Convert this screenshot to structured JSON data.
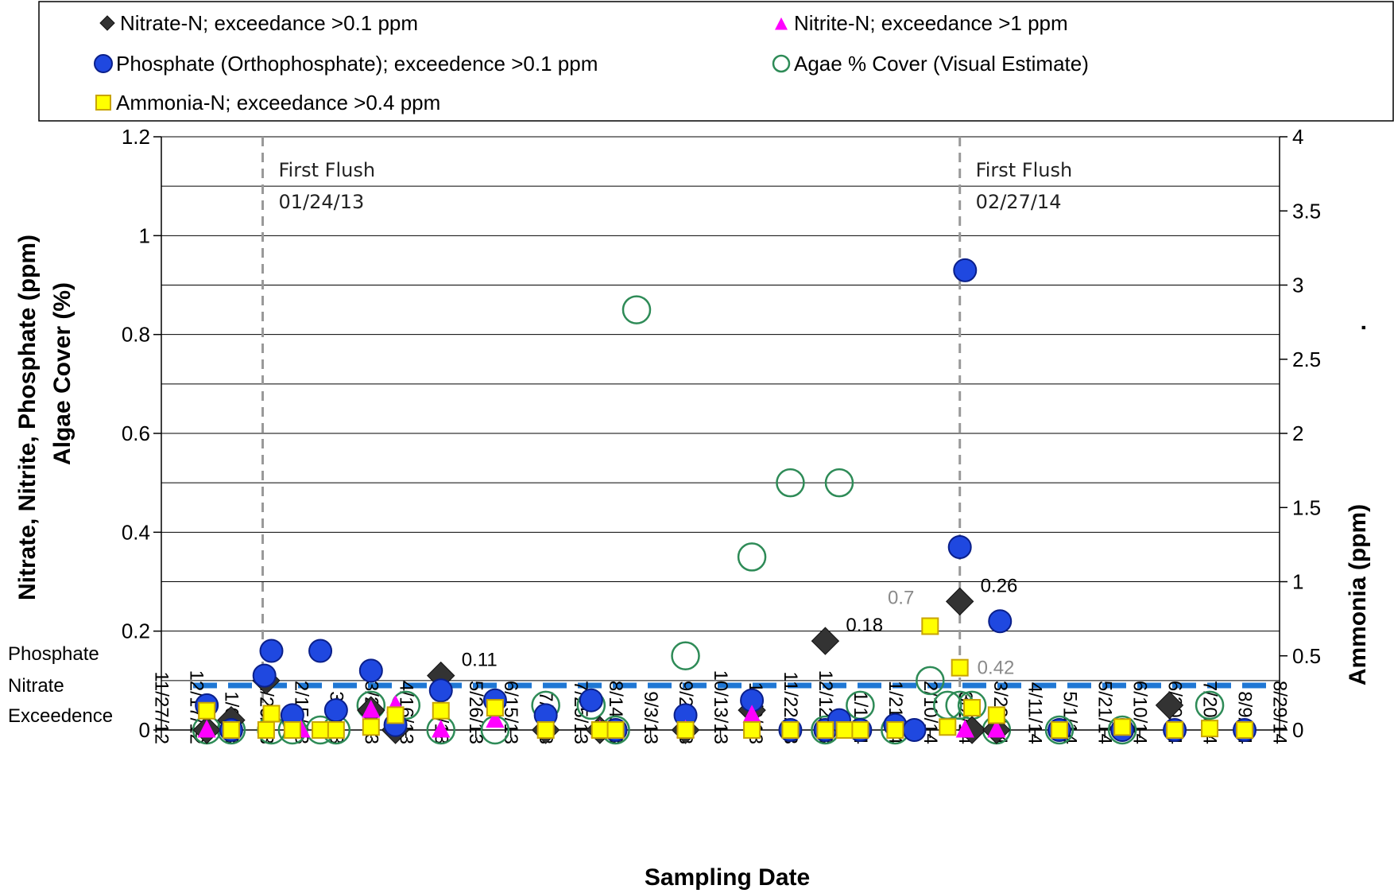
{
  "chart_data": {
    "type": "scatter",
    "xlabel": "Sampling Date",
    "ylabel_left_line1": "Nitrate, Nitrite, Phosphate (ppm)",
    "ylabel_left_line2": "Algae Cover (%)",
    "ylabel_right": "Ammonia (ppm)",
    "ylabel_right_dot": ".",
    "ylim_left": [
      0,
      1.2
    ],
    "yticks_left": [
      "0",
      "0.2",
      "0.4",
      "0.6",
      "0.8",
      "1",
      "1.2"
    ],
    "ylim_right": [
      0,
      4
    ],
    "yticks_right": [
      "0",
      "0.5",
      "1",
      "1.5",
      "2",
      "2.5",
      "3",
      "3.5",
      "4"
    ],
    "xlim": [
      "11/27/12",
      "8/29/14"
    ],
    "xticks": [
      "11/27/12",
      "12/17/12",
      "1/6/13",
      "1/26/13",
      "2/15/13",
      "3/7/13",
      "3/27/13",
      "4/16/13",
      "5/6/13",
      "5/26/13",
      "6/15/13",
      "7/5/13",
      "7/25/13",
      "8/14/13",
      "9/3/13",
      "9/23/13",
      "10/13/13",
      "11/2/13",
      "11/22/13",
      "12/12/13",
      "1/1/14",
      "1/21/14",
      "2/10/14",
      "3/2/14",
      "3/22/14",
      "4/11/14",
      "5/1/14",
      "5/21/14",
      "6/10/14",
      "6/30/14",
      "7/20/14",
      "8/9/14",
      "8/29/14"
    ],
    "grid": "horizontal",
    "legend_position": "top",
    "legend": [
      {
        "series": "nitrate",
        "label": "Nitrate-N; exceedance >0.1 ppm"
      },
      {
        "series": "nitrite",
        "label": "Nitrite-N; exceedance >1 ppm"
      },
      {
        "series": "phosphate",
        "label": "Phosphate (Orthophosphate); exceedence >0.1 ppm"
      },
      {
        "series": "algae",
        "label": "Agae % Cover (Visual Estimate)"
      },
      {
        "series": "ammonia",
        "label": "Ammonia-N; exceedance >0.4 ppm"
      }
    ],
    "threshold": {
      "y": 0.09,
      "color": "#1f77d4",
      "label_lines": [
        "Phosphate",
        "Nitrate",
        "Exceedence"
      ]
    },
    "first_flush": [
      {
        "date": "1/24/13",
        "label_line1": "First Flush",
        "label_line2": "01/24/13"
      },
      {
        "date": "2/27/14",
        "label_line1": "First Flush",
        "label_line2": "02/27/14"
      }
    ],
    "colors": {
      "nitrate": "#333333",
      "nitrite": "#ff00ff",
      "phosphate": "#1f48e0",
      "algae": "#2e8b57",
      "ammonia_fill": "#ffff00",
      "ammonia_stroke": "#c8a400",
      "grid": "#000000",
      "flush_line": "#999999"
    },
    "series": {
      "nitrate": [
        {
          "x": "12/23/12",
          "y": 0.0
        },
        {
          "x": "1/6/13",
          "y": 0.02
        },
        {
          "x": "1/26/13",
          "y": 0.1
        },
        {
          "x": "3/27/13",
          "y": 0.04
        },
        {
          "x": "4/10/13",
          "y": 0.0
        },
        {
          "x": "5/6/13",
          "y": 0.11,
          "label": "0.11"
        },
        {
          "x": "7/5/13",
          "y": 0.0
        },
        {
          "x": "8/5/13",
          "y": 0.0
        },
        {
          "x": "9/23/13",
          "y": 0.0
        },
        {
          "x": "10/31/13",
          "y": 0.04
        },
        {
          "x": "12/12/13",
          "y": 0.18,
          "label": "0.18"
        },
        {
          "x": "2/27/14",
          "y": 0.26,
          "label": "0.26"
        },
        {
          "x": "3/6/14",
          "y": 0.0
        },
        {
          "x": "3/20/14",
          "y": 0.0
        },
        {
          "x": "6/27/14",
          "y": 0.05
        }
      ],
      "nitrite": [
        {
          "x": "12/23/12",
          "y": 0.0
        },
        {
          "x": "2/15/13",
          "y": 0.0
        },
        {
          "x": "3/27/13",
          "y": 0.04
        },
        {
          "x": "4/10/13",
          "y": 0.05
        },
        {
          "x": "5/6/13",
          "y": 0.0
        },
        {
          "x": "6/6/13",
          "y": 0.02
        },
        {
          "x": "8/5/13",
          "y": 0.0
        },
        {
          "x": "9/23/13",
          "y": 0.0
        },
        {
          "x": "10/31/13",
          "y": 0.03
        },
        {
          "x": "3/2/14",
          "y": 0.0
        },
        {
          "x": "3/20/14",
          "y": 0.0
        }
      ],
      "phosphate": [
        {
          "x": "12/23/12",
          "y": 0.05
        },
        {
          "x": "1/6/13",
          "y": 0.0
        },
        {
          "x": "1/25/13",
          "y": 0.11
        },
        {
          "x": "1/29/13",
          "y": 0.16
        },
        {
          "x": "2/10/13",
          "y": 0.03
        },
        {
          "x": "2/26/13",
          "y": 0.16
        },
        {
          "x": "3/7/13",
          "y": 0.04
        },
        {
          "x": "3/27/13",
          "y": 0.12
        },
        {
          "x": "4/10/13",
          "y": 0.01
        },
        {
          "x": "5/6/13",
          "y": 0.08
        },
        {
          "x": "6/6/13",
          "y": 0.06
        },
        {
          "x": "7/5/13",
          "y": 0.03
        },
        {
          "x": "7/31/13",
          "y": 0.06
        },
        {
          "x": "8/14/13",
          "y": 0.0
        },
        {
          "x": "9/23/13",
          "y": 0.03
        },
        {
          "x": "10/31/13",
          "y": 0.06
        },
        {
          "x": "11/22/13",
          "y": 0.0
        },
        {
          "x": "12/12/13",
          "y": 0.0
        },
        {
          "x": "12/20/13",
          "y": 0.02
        },
        {
          "x": "1/1/14",
          "y": 0.0
        },
        {
          "x": "1/21/14",
          "y": 0.01
        },
        {
          "x": "2/1/14",
          "y": 0.0
        },
        {
          "x": "2/27/14",
          "y": 0.37
        },
        {
          "x": "3/2/14",
          "y": 0.93
        },
        {
          "x": "3/22/14",
          "y": 0.22
        },
        {
          "x": "4/25/14",
          "y": 0.0
        },
        {
          "x": "5/31/14",
          "y": 0.0
        },
        {
          "x": "6/30/14",
          "y": 0.0
        },
        {
          "x": "8/9/14",
          "y": 0.0
        }
      ],
      "algae": [
        {
          "x": "12/23/12",
          "y": 0.0
        },
        {
          "x": "1/6/13",
          "y": 0.0
        },
        {
          "x": "1/29/13",
          "y": 0.0
        },
        {
          "x": "2/10/13",
          "y": 0.0
        },
        {
          "x": "2/26/13",
          "y": 0.0
        },
        {
          "x": "3/7/13",
          "y": 0.0
        },
        {
          "x": "3/27/13",
          "y": 0.05
        },
        {
          "x": "4/16/13",
          "y": 0.05
        },
        {
          "x": "5/6/13",
          "y": 0.0
        },
        {
          "x": "6/6/13",
          "y": 0.0
        },
        {
          "x": "7/5/13",
          "y": 0.05
        },
        {
          "x": "7/31/13",
          "y": 0.05
        },
        {
          "x": "8/14/13",
          "y": 0.0
        },
        {
          "x": "8/26/13",
          "y": 0.85
        },
        {
          "x": "9/23/13",
          "y": 0.15
        },
        {
          "x": "10/31/13",
          "y": 0.35
        },
        {
          "x": "11/22/13",
          "y": 0.5
        },
        {
          "x": "12/20/13",
          "y": 0.5
        },
        {
          "x": "12/12/13",
          "y": 0.0
        },
        {
          "x": "1/1/14",
          "y": 0.05
        },
        {
          "x": "1/21/14",
          "y": 0.0
        },
        {
          "x": "2/10/14",
          "y": 0.1
        },
        {
          "x": "2/20/14",
          "y": 0.05
        },
        {
          "x": "2/27/14",
          "y": 0.05
        },
        {
          "x": "3/6/14",
          "y": 0.05
        },
        {
          "x": "3/20/14",
          "y": 0.0
        },
        {
          "x": "4/25/14",
          "y": 0.0
        },
        {
          "x": "5/31/14",
          "y": 0.0
        },
        {
          "x": "7/20/14",
          "y": 0.05
        }
      ],
      "ammonia": [
        {
          "x": "12/23/12",
          "y": 0.13
        },
        {
          "x": "1/6/13",
          "y": 0.0
        },
        {
          "x": "1/26/13",
          "y": 0.0
        },
        {
          "x": "1/29/13",
          "y": 0.11
        },
        {
          "x": "2/10/13",
          "y": 0.0
        },
        {
          "x": "2/26/13",
          "y": 0.0
        },
        {
          "x": "3/7/13",
          "y": 0.0
        },
        {
          "x": "3/27/13",
          "y": 0.02
        },
        {
          "x": "4/10/13",
          "y": 0.1
        },
        {
          "x": "5/6/13",
          "y": 0.13
        },
        {
          "x": "6/6/13",
          "y": 0.15
        },
        {
          "x": "7/5/13",
          "y": 0.0
        },
        {
          "x": "8/5/13",
          "y": 0.0
        },
        {
          "x": "8/14/13",
          "y": 0.0
        },
        {
          "x": "9/23/13",
          "y": 0.0
        },
        {
          "x": "10/31/13",
          "y": 0.0
        },
        {
          "x": "11/22/13",
          "y": 0.0
        },
        {
          "x": "12/12/13",
          "y": 0.0
        },
        {
          "x": "12/23/13",
          "y": 0.0
        },
        {
          "x": "1/1/14",
          "y": 0.0
        },
        {
          "x": "1/21/14",
          "y": 0.0
        },
        {
          "x": "2/10/14",
          "y": 0.7,
          "label": "0.7"
        },
        {
          "x": "2/20/14",
          "y": 0.02
        },
        {
          "x": "2/27/14",
          "y": 0.42,
          "label": "0.42"
        },
        {
          "x": "3/6/14",
          "y": 0.15
        },
        {
          "x": "3/20/14",
          "y": 0.1
        },
        {
          "x": "4/25/14",
          "y": 0.0
        },
        {
          "x": "5/31/14",
          "y": 0.02
        },
        {
          "x": "6/30/14",
          "y": 0.0
        },
        {
          "x": "7/20/14",
          "y": 0.01
        },
        {
          "x": "8/9/14",
          "y": 0.0
        }
      ]
    }
  }
}
